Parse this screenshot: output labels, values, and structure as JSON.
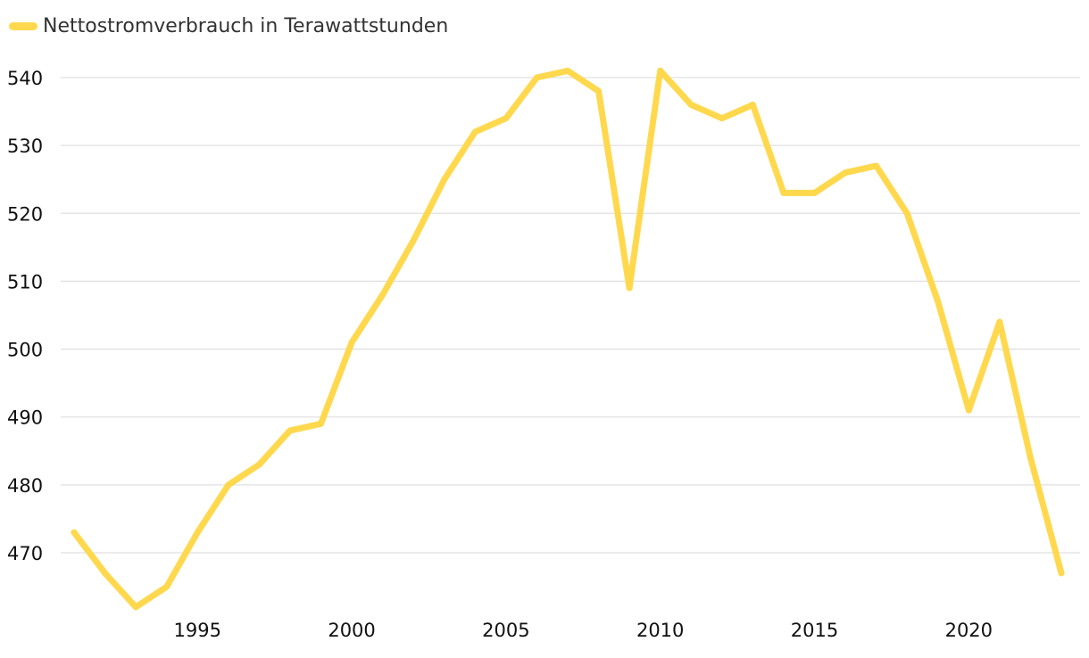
{
  "chart_data": {
    "type": "line",
    "title": "",
    "xlabel": "",
    "ylabel": "",
    "legend_position": "top-left",
    "grid": true,
    "series": [
      {
        "name": "Nettostromverbrauch in Terawattstunden",
        "color": "#FFD84D",
        "x": [
          1991,
          1992,
          1993,
          1994,
          1995,
          1996,
          1997,
          1998,
          1999,
          2000,
          2001,
          2002,
          2003,
          2004,
          2005,
          2006,
          2007,
          2008,
          2009,
          2010,
          2011,
          2012,
          2013,
          2014,
          2015,
          2016,
          2017,
          2018,
          2019,
          2020,
          2021,
          2022,
          2023
        ],
        "values": [
          473,
          467,
          462,
          465,
          473,
          480,
          483,
          488,
          489,
          501,
          508,
          516,
          525,
          532,
          534,
          540,
          541,
          538,
          509,
          541,
          536,
          534,
          536,
          523,
          523,
          526,
          527,
          520,
          507,
          491,
          504,
          484,
          467
        ]
      }
    ],
    "x_ticks": [
      1995,
      2000,
      2005,
      2010,
      2015,
      2020
    ],
    "y_ticks": [
      470,
      480,
      490,
      500,
      510,
      520,
      530,
      540
    ],
    "xlim": [
      1991,
      2023
    ],
    "ylim": [
      461,
      543
    ]
  }
}
